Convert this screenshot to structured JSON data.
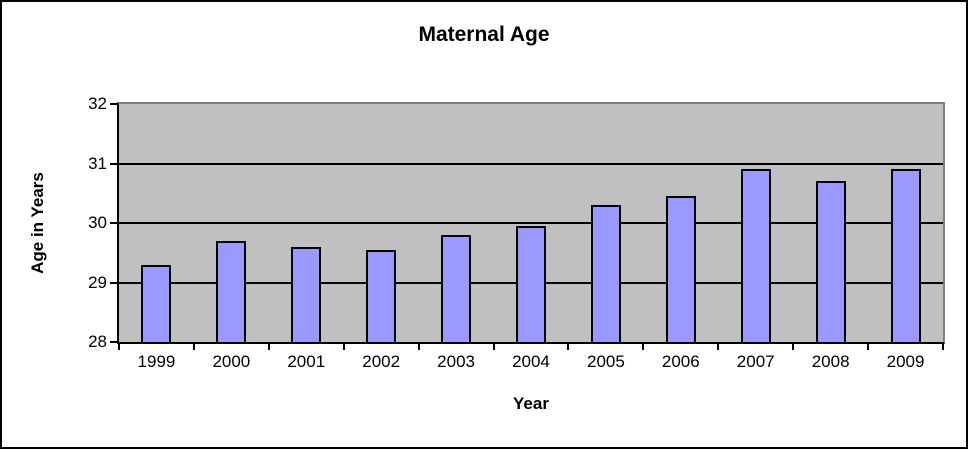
{
  "chart_data": {
    "type": "bar",
    "title": "Maternal Age",
    "xlabel": "Year",
    "ylabel": "Age in Years",
    "categories": [
      "1999",
      "2000",
      "2001",
      "2002",
      "2003",
      "2004",
      "2005",
      "2006",
      "2007",
      "2008",
      "2009"
    ],
    "values": [
      29.3,
      29.7,
      29.6,
      29.55,
      29.8,
      29.95,
      30.3,
      30.45,
      30.9,
      30.7,
      30.9
    ],
    "ylim": [
      28,
      32
    ],
    "yticks": [
      28,
      29,
      30,
      31,
      32
    ],
    "grid": true,
    "legend": false,
    "colors": {
      "bar_fill": "#9999FF",
      "bar_border": "#000000",
      "plot_bg": "#C0C0C0",
      "plot_border": "#808080",
      "gridline": "#000000",
      "axis": "#000000",
      "text": "#000000",
      "background": "#FFFFFF",
      "outer_border": "#000000"
    }
  }
}
